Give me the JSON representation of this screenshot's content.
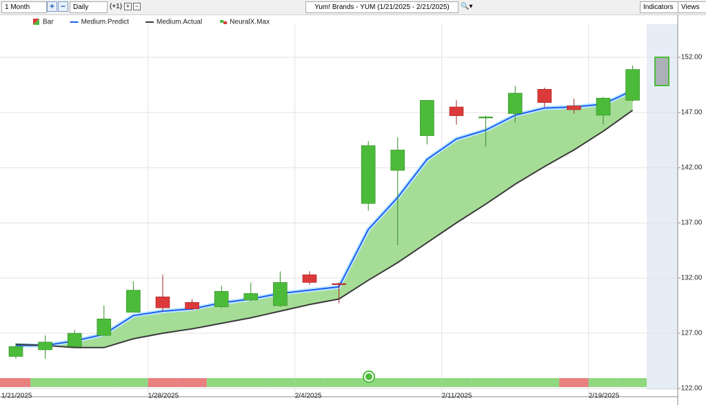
{
  "toolbar": {
    "period": "1 Month",
    "interval": "Daily",
    "offset": "(+1)",
    "symbol": "Yum! Brands - YUM (1/21/2025 - 2/21/2025)",
    "indicators": "Indicators",
    "views": "Views"
  },
  "chart_data": {
    "type": "candlestick",
    "categories": [
      "1/21/2025",
      null,
      null,
      null,
      null,
      "1/28/2025",
      null,
      null,
      null,
      null,
      "2/4/2025",
      null,
      null,
      null,
      null,
      "2/11/2025",
      null,
      null,
      null,
      null,
      "2/19/2025",
      null
    ],
    "candles": {
      "name": "Bar",
      "up_color": "#4cbb3a",
      "down_color": "#dc3a3a",
      "open": [
        124.9,
        125.5,
        125.8,
        126.8,
        128.9,
        130.3,
        129.8,
        129.4,
        130.0,
        129.5,
        132.3,
        131.5,
        138.75,
        141.75,
        144.9,
        147.5,
        146.5,
        146.9,
        149.1,
        147.6,
        146.75,
        148.1
      ],
      "high": [
        126.1,
        126.8,
        127.3,
        129.5,
        131.7,
        132.3,
        130.1,
        131.3,
        131.6,
        132.6,
        132.6,
        131.6,
        144.4,
        144.75,
        148.1,
        148.1,
        146.7,
        149.4,
        149.25,
        148.25,
        148.4,
        151.25
      ],
      "low": [
        124.7,
        124.7,
        125.7,
        126.7,
        128.9,
        129.0,
        129.1,
        129.3,
        129.9,
        129.4,
        131.4,
        129.7,
        138.1,
        135.0,
        144.1,
        145.9,
        143.9,
        146.1,
        147.5,
        146.9,
        145.9,
        148.0
      ],
      "close": [
        125.8,
        126.2,
        127.0,
        128.3,
        130.9,
        129.3,
        129.2,
        130.8,
        130.6,
        131.6,
        131.6,
        131.4,
        144.0,
        143.6,
        148.1,
        146.7,
        146.6,
        148.75,
        147.9,
        147.25,
        148.3,
        150.9
      ]
    },
    "series": [
      {
        "name": "Medium.Predict",
        "color": "#1a5ff0",
        "values": [
          125.9,
          125.9,
          126.3,
          126.9,
          128.6,
          129.0,
          129.2,
          129.75,
          130.1,
          130.6,
          130.9,
          131.2,
          136.4,
          139.3,
          142.75,
          144.6,
          145.4,
          146.75,
          147.4,
          147.5,
          147.75,
          149.0
        ]
      },
      {
        "name": "Medium.Actual",
        "color": "#3a3a3a",
        "values": [
          126.0,
          125.9,
          125.7,
          125.7,
          126.5,
          127.0,
          127.4,
          127.9,
          128.4,
          129.0,
          129.6,
          130.1,
          131.8,
          133.4,
          135.2,
          137.0,
          138.7,
          140.5,
          142.1,
          143.6,
          145.3,
          147.2
        ]
      }
    ],
    "area_color": "#9bd98b",
    "signal": {
      "name": "NeuralX.Max",
      "colors": [
        "#e88080",
        "#90d880",
        "#90d880",
        "#90d880",
        "#90d880",
        "#e88080",
        "#e88080",
        "#90d880",
        "#90d880",
        "#90d880",
        "#90d880",
        "#90d880",
        "#90d880",
        "#90d880",
        "#90d880",
        "#90d880",
        "#90d880",
        "#90d880",
        "#90d880",
        "#e88080",
        "#90d880",
        "#90d880"
      ]
    },
    "ylim": [
      122,
      155
    ],
    "yticks": [
      {
        "value": 122,
        "label": "122.00"
      },
      {
        "value": 127,
        "label": "127.00"
      },
      {
        "value": 132,
        "label": "132.00"
      },
      {
        "value": 137,
        "label": "137.00"
      },
      {
        "value": 142,
        "label": "142.00"
      },
      {
        "value": 147,
        "label": "147.00"
      },
      {
        "value": 152,
        "label": "152.00"
      }
    ],
    "grid": true
  }
}
